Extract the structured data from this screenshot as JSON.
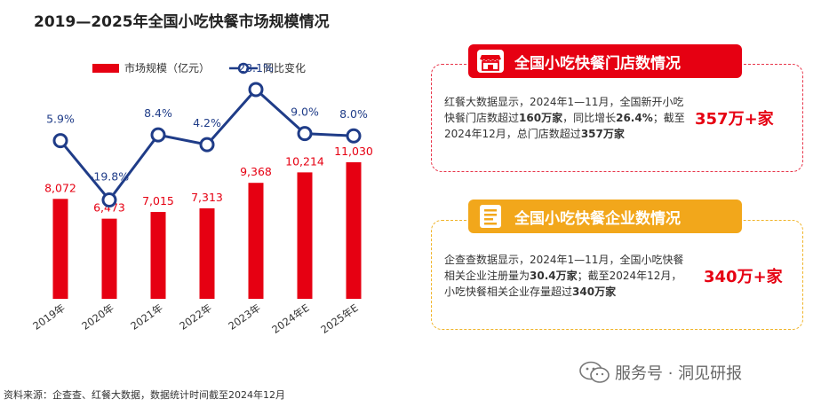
{
  "title": "2019—2025年全国小吃快餐市场规模情况",
  "legend": {
    "bar": "市场规模（亿元）",
    "line": "同比变化"
  },
  "chart_data": {
    "type": "bar",
    "title": "2019—2025年全国小吃快餐市场规模情况",
    "categories": [
      "2019年",
      "2020年",
      "2021年",
      "2022年",
      "2023年",
      "2024年E",
      "2025年E"
    ],
    "series": [
      {
        "name": "市场规模（亿元）",
        "type": "bar",
        "values": [
          8072,
          6473,
          7015,
          7313,
          9368,
          10214,
          11030
        ],
        "labels": [
          "8,072",
          "6,473",
          "7,015",
          "7,313",
          "9,368",
          "10,214",
          "11,030"
        ]
      },
      {
        "name": "同比变化",
        "type": "line",
        "values": [
          5.9,
          -19.8,
          8.4,
          4.2,
          28.1,
          9.0,
          8.0
        ],
        "labels": [
          "5.9%",
          "-19.8%",
          "8.4%",
          "4.2%",
          "28.1%",
          "9.0%",
          "8.0%"
        ]
      }
    ],
    "colors": {
      "bar": "#e60012",
      "line": "#1f3c88"
    },
    "legend_position": "top",
    "grid": false
  },
  "panel_stores": {
    "heading": "全国小吃快餐门店数情况",
    "icon": "storefront-icon",
    "text_parts": [
      {
        "t": "红餐大数据显示，2024年1—11月，全国新开小吃快餐门店数超过",
        "b": false
      },
      {
        "t": "160万家",
        "b": true
      },
      {
        "t": "，同比增长",
        "b": false
      },
      {
        "t": "26.4%",
        "b": true
      },
      {
        "t": "；截至2024年12月，总门店数超过",
        "b": false
      },
      {
        "t": "357万家",
        "b": true
      }
    ],
    "highlight": "357万+家"
  },
  "panel_companies": {
    "heading": "全国小吃快餐企业数情况",
    "icon": "document-icon",
    "text_parts": [
      {
        "t": "企查查数据显示，2024年1—11月，全国小吃快餐相关企业注册量为",
        "b": false
      },
      {
        "t": "30.4万家",
        "b": true
      },
      {
        "t": "；截至2024年12月，小吃快餐相关企业存量超过",
        "b": false
      },
      {
        "t": "340万家",
        "b": true
      }
    ],
    "highlight": "340万+家"
  },
  "source": "资料来源：企查查、红餐大数据，数据统计时间截至2024年12月",
  "brand": "服务号 · 洞见研报"
}
